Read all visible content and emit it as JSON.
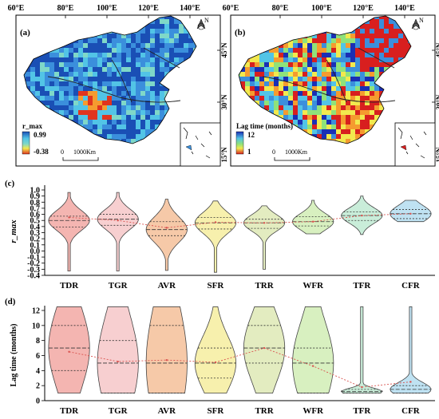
{
  "maps": [
    {
      "panel_label": "(a)",
      "lon_ticks": [
        "60°E",
        "80°E",
        "100°E",
        "120°E",
        "140°E"
      ],
      "lat_ticks": [
        "45°N",
        "30°N",
        "15°N"
      ],
      "legend_title": "r_max",
      "legend_max": "0.99",
      "legend_min": "-0.38",
      "scale_zero": "0",
      "scale_label": "1000Km",
      "north_label": "N",
      "colors": [
        "#1a4fb5",
        "#3b8fdc",
        "#52c4e6",
        "#7fd8c8",
        "#f2e94e",
        "#f59b2f",
        "#e0341f"
      ]
    },
    {
      "panel_label": "(b)",
      "lon_ticks": [
        "60°E",
        "80°E",
        "100°E",
        "120°E",
        "140°E"
      ],
      "lat_ticks": [
        "45°N",
        "30°N",
        "15°N"
      ],
      "legend_title": "Lag time (months)",
      "legend_max": "12",
      "legend_min": "1",
      "scale_zero": "0",
      "scale_label": "1000Km",
      "north_label": "N",
      "colors": [
        "#1a2fb5",
        "#3b8fdc",
        "#52c4e6",
        "#8fe27a",
        "#f2e94e",
        "#f59b2f",
        "#d81f1f"
      ]
    }
  ],
  "chart_data": [
    {
      "type": "violin",
      "panel_label": "(c)",
      "ylabel": "r_max",
      "ylim": [
        -0.4,
        1.0
      ],
      "yticks": [
        -0.4,
        -0.3,
        -0.2,
        -0.1,
        0.0,
        0.1,
        0.2,
        0.3,
        0.4,
        0.5,
        0.6,
        0.7,
        0.8,
        0.9,
        1.0
      ],
      "categories": [
        "TDR",
        "TGR",
        "AVR",
        "SFR",
        "TRR",
        "WFR",
        "TFR",
        "CFR"
      ],
      "colors": [
        "#f4b5b1",
        "#f7cfd0",
        "#f6c9a8",
        "#f7f0ad",
        "#e3ecc0",
        "#d8f0c0",
        "#c9edd9",
        "#bfe2f2"
      ],
      "range_min": [
        -0.33,
        -0.33,
        -0.32,
        -0.35,
        -0.3,
        0.28,
        0.27,
        0.48
      ],
      "range_max": [
        0.96,
        0.96,
        0.85,
        0.82,
        0.74,
        0.83,
        0.9,
        0.83
      ],
      "q1": [
        0.39,
        0.42,
        0.25,
        0.36,
        0.37,
        0.41,
        0.5,
        0.53
      ],
      "median": [
        0.5,
        0.52,
        0.35,
        0.46,
        0.46,
        0.48,
        0.58,
        0.61
      ],
      "q3": [
        0.57,
        0.6,
        0.48,
        0.55,
        0.52,
        0.56,
        0.64,
        0.68
      ],
      "mean_line": [
        0.55,
        0.5,
        0.38,
        0.47,
        0.46,
        0.48,
        0.58,
        0.61
      ]
    },
    {
      "type": "violin",
      "panel_label": "(d)",
      "ylabel": "Lag time (months)",
      "ylim": [
        0,
        12
      ],
      "yticks": [
        0,
        2,
        4,
        6,
        8,
        10,
        12
      ],
      "categories": [
        "TDR",
        "TGR",
        "AVR",
        "SFR",
        "TRR",
        "WFR",
        "TFR",
        "CFR"
      ],
      "colors": [
        "#f4b5b1",
        "#f7cfd0",
        "#f6c9a8",
        "#f7f0ad",
        "#e3ecc0",
        "#d8f0c0",
        "#c9edd9",
        "#bfe2f2"
      ],
      "range_min": [
        1,
        1,
        1,
        1,
        1,
        1,
        1,
        1
      ],
      "range_max": [
        12.5,
        12.5,
        12.5,
        12.5,
        12.5,
        12.5,
        12.5,
        12.5
      ],
      "q1": [
        4,
        1,
        1,
        3,
        5,
        1,
        1,
        1
      ],
      "median": [
        7,
        5,
        5,
        5,
        7,
        5,
        1.2,
        1.5
      ],
      "q3": [
        10,
        8,
        10,
        7,
        10,
        7,
        1.5,
        2
      ],
      "mean_line": [
        6.5,
        5.2,
        5.4,
        5.1,
        7.0,
        4.6,
        1.8,
        2.5
      ]
    }
  ]
}
